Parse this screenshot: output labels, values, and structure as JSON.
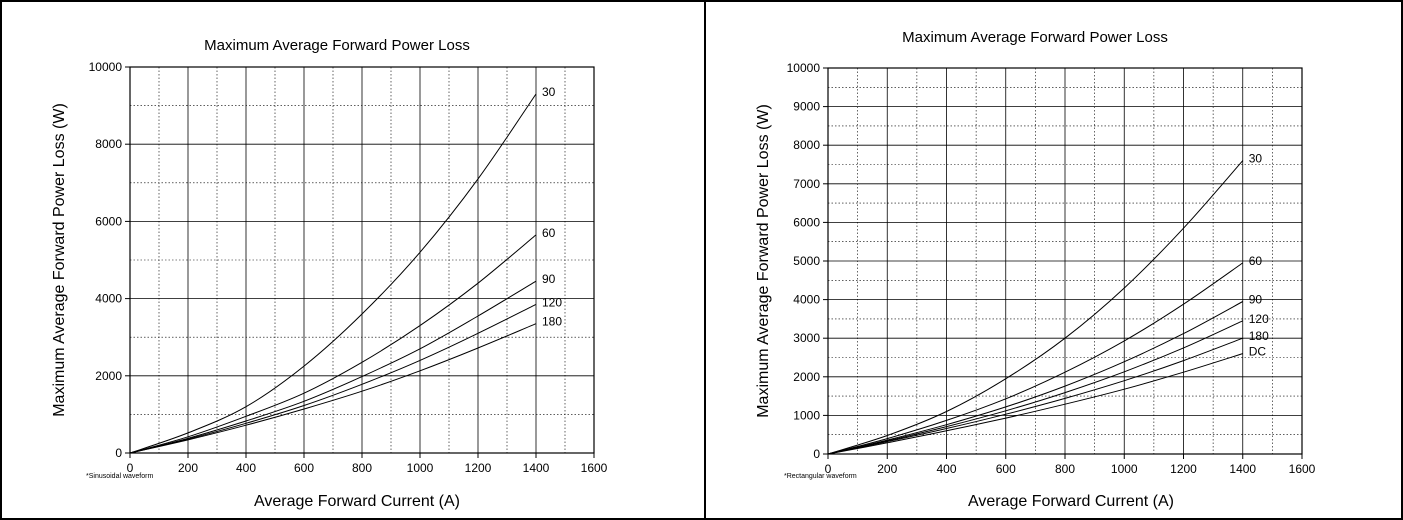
{
  "colors": {
    "line": "#000000",
    "grid": "#000000",
    "background": "#ffffff"
  },
  "chart_data": [
    {
      "type": "line",
      "title": "Maximum Average Forward Power Loss",
      "xlabel": "Average Forward Current (A)",
      "ylabel": "Maximum Average Forward Power Loss (W)",
      "footnote": "*Sinusoidal waveform",
      "xlim": [
        0,
        1600
      ],
      "ylim": [
        0,
        10000
      ],
      "x_ticks": [
        0,
        200,
        400,
        600,
        800,
        1000,
        1200,
        1400,
        1600
      ],
      "y_ticks": [
        0,
        2000,
        4000,
        6000,
        8000,
        10000
      ],
      "x_minor_step": 100,
      "y_minor_step": 1000,
      "grid": true,
      "series": [
        {
          "label": "30",
          "x": [
            0,
            200,
            400,
            600,
            800,
            1000,
            1200,
            1400
          ],
          "y": [
            0,
            520,
            1200,
            2250,
            3600,
            5200,
            7100,
            9300
          ]
        },
        {
          "label": "60",
          "x": [
            0,
            200,
            400,
            600,
            800,
            1000,
            1200,
            1400
          ],
          "y": [
            0,
            420,
            950,
            1550,
            2350,
            3300,
            4400,
            5650
          ]
        },
        {
          "label": "90",
          "x": [
            0,
            200,
            400,
            600,
            800,
            1000,
            1200,
            1400
          ],
          "y": [
            0,
            380,
            830,
            1340,
            1980,
            2700,
            3550,
            4450
          ]
        },
        {
          "label": "120",
          "x": [
            0,
            200,
            400,
            600,
            800,
            1000,
            1200,
            1400
          ],
          "y": [
            0,
            360,
            770,
            1230,
            1780,
            2400,
            3100,
            3850
          ]
        },
        {
          "label": "180",
          "x": [
            0,
            200,
            400,
            600,
            800,
            1000,
            1200,
            1400
          ],
          "y": [
            0,
            340,
            720,
            1140,
            1600,
            2130,
            2720,
            3350
          ]
        }
      ]
    },
    {
      "type": "line",
      "title": "Maximum Average Forward Power Loss",
      "xlabel": "Average Forward Current (A)",
      "ylabel": "Maximum Average Forward Power Loss (W)",
      "footnote": "*Rectangular waveform",
      "xlim": [
        0,
        1600
      ],
      "ylim": [
        0,
        10000
      ],
      "x_ticks": [
        0,
        200,
        400,
        600,
        800,
        1000,
        1200,
        1400,
        1600
      ],
      "y_ticks": [
        0,
        1000,
        2000,
        3000,
        4000,
        5000,
        6000,
        7000,
        8000,
        9000,
        10000
      ],
      "x_minor_step": 100,
      "y_minor_step": 500,
      "grid": true,
      "series": [
        {
          "label": "30",
          "x": [
            0,
            200,
            400,
            600,
            800,
            1000,
            1200,
            1400
          ],
          "y": [
            0,
            480,
            1100,
            1950,
            3000,
            4300,
            5850,
            7600
          ]
        },
        {
          "label": "60",
          "x": [
            0,
            200,
            400,
            600,
            800,
            1000,
            1200,
            1400
          ],
          "y": [
            0,
            400,
            870,
            1430,
            2120,
            2930,
            3880,
            4950
          ]
        },
        {
          "label": "90",
          "x": [
            0,
            200,
            400,
            600,
            800,
            1000,
            1200,
            1400
          ],
          "y": [
            0,
            360,
            760,
            1220,
            1760,
            2390,
            3120,
            3950
          ]
        },
        {
          "label": "120",
          "x": [
            0,
            200,
            400,
            600,
            800,
            1000,
            1200,
            1400
          ],
          "y": [
            0,
            340,
            710,
            1120,
            1590,
            2130,
            2750,
            3450
          ]
        },
        {
          "label": "180",
          "x": [
            0,
            200,
            400,
            600,
            800,
            1000,
            1200,
            1400
          ],
          "y": [
            0,
            320,
            660,
            1030,
            1440,
            1900,
            2420,
            3000
          ]
        },
        {
          "label": "DC",
          "x": [
            0,
            200,
            400,
            600,
            800,
            1000,
            1200,
            1400
          ],
          "y": [
            0,
            290,
            600,
            930,
            1290,
            1680,
            2120,
            2600
          ]
        }
      ]
    }
  ]
}
